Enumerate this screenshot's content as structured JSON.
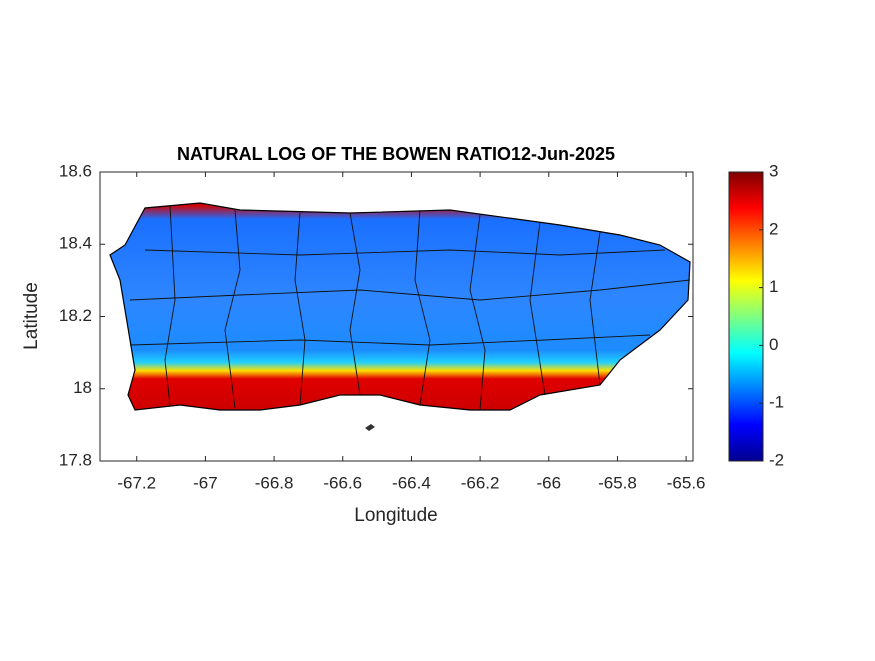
{
  "chart_data": {
    "type": "map",
    "title": "NATURAL LOG OF THE BOWEN RATIO12-Jun-2025",
    "xlabel": "Longitude",
    "ylabel": "Latitude",
    "xlim": [
      -67.307,
      -65.58
    ],
    "xticks": [
      -67.2,
      -67,
      -66.8,
      -66.6,
      -66.4,
      -66.2,
      -66,
      -65.8,
      -65.6
    ],
    "ylim": [
      17.8,
      18.6
    ],
    "yticks": [
      17.8,
      18,
      18.2,
      18.4,
      18.6
    ],
    "clim": [
      -2,
      3
    ],
    "cticks": [
      -2,
      -1,
      0,
      1,
      2,
      3
    ]
  }
}
